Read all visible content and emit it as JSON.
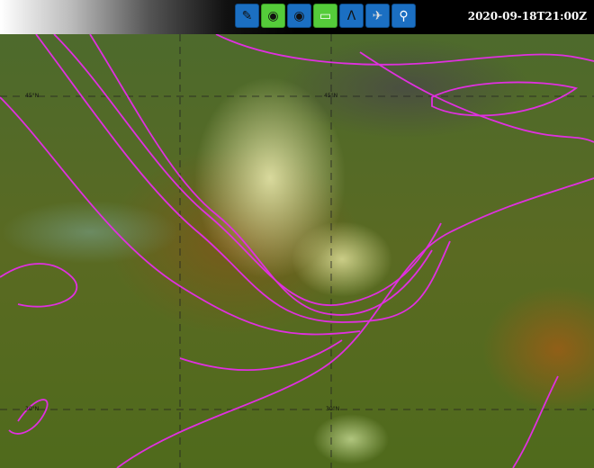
{
  "toolbar": {
    "buttons": [
      {
        "icon": "pencil-icon",
        "active": false
      },
      {
        "icon": "globe-icon",
        "active": true
      },
      {
        "icon": "globe-icon",
        "active": false
      },
      {
        "icon": "layers-panel-icon",
        "active": true
      },
      {
        "icon": "compass-icon",
        "active": false
      },
      {
        "icon": "satellite-icon",
        "active": false
      },
      {
        "icon": "search-icon",
        "active": false
      }
    ]
  },
  "timestamp": "2020-09-18T21:00Z",
  "map": {
    "lat_labels": [
      "45°N",
      "45°N",
      "30°N",
      "30°N"
    ],
    "contour_color": "#e030e0"
  }
}
